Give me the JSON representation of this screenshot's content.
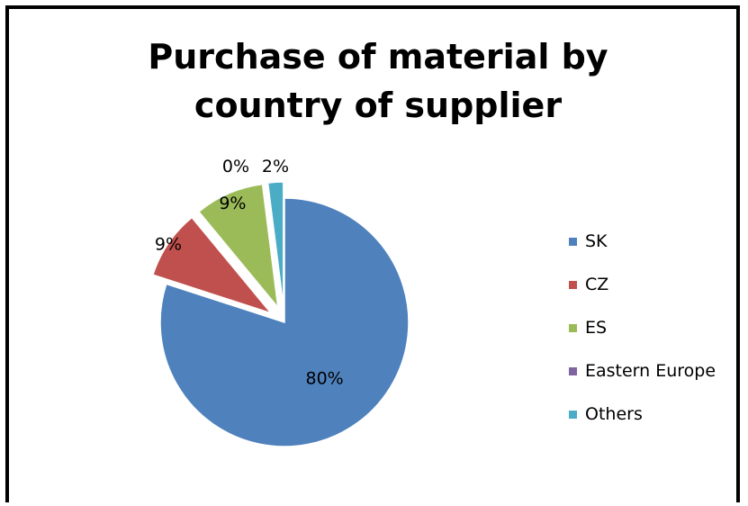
{
  "chart_data": {
    "type": "pie",
    "title": "Purchase of material by country of supplier",
    "categories": [
      "SK",
      "CZ",
      "ES",
      "Eastern Europe",
      "Others"
    ],
    "values": [
      80,
      9,
      9,
      0,
      2
    ],
    "data_labels": [
      "80%",
      "9%",
      "9%",
      "0%",
      "2%"
    ],
    "colors": [
      "#4F81BD",
      "#C0504D",
      "#9BBB59",
      "#8064A2",
      "#4BACC6"
    ],
    "exploded": true,
    "legend": "right"
  }
}
